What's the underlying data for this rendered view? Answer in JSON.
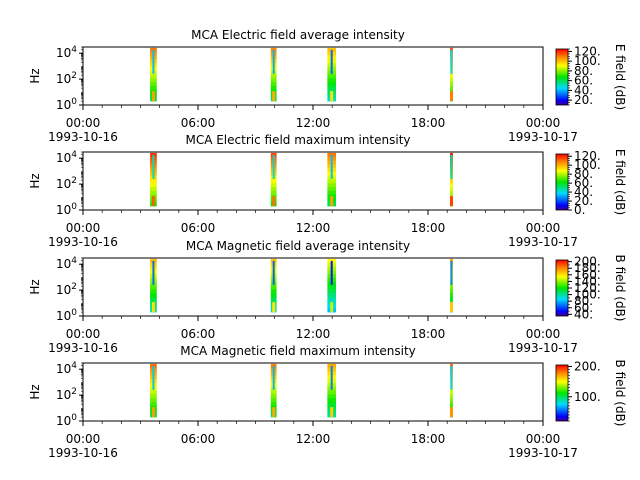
{
  "chart_data": [
    {
      "type": "heatmap",
      "title": "MCA  Electric field average intensity",
      "ylabel": "Hz",
      "colorbar_label": "E field (dB)",
      "colorbar_ticks": [
        "120.",
        "100.",
        "80.",
        "60.",
        "40.",
        "20."
      ],
      "colorbar_range": [
        10,
        125
      ],
      "y_ticks": [
        "10^0",
        "10^2",
        "10^4"
      ],
      "ylim": [
        1,
        30000
      ],
      "x_ticks": [
        "00:00",
        "06:00",
        "12:00",
        "18:00",
        "00:00"
      ],
      "x_dates": [
        "1993-10-16",
        "1993-10-17"
      ],
      "xlim_hours": [
        0,
        24
      ],
      "bursts": [
        {
          "start_hour": 3.5,
          "end_hour": 3.85,
          "level_db": 70
        },
        {
          "start_hour": 9.8,
          "end_hour": 10.1,
          "level_db": 68
        },
        {
          "start_hour": 12.75,
          "end_hour": 13.2,
          "level_db": 60
        },
        {
          "start_hour": 19.15,
          "end_hour": 19.3,
          "level_db": 75
        }
      ]
    },
    {
      "type": "heatmap",
      "title": "MCA  Electric field maximum intensity",
      "ylabel": "Hz",
      "colorbar_label": "E field (dB)",
      "colorbar_ticks": [
        "120.",
        "100.",
        "80.",
        "60.",
        "40.",
        "20.",
        "0."
      ],
      "colorbar_range": [
        0,
        125
      ],
      "y_ticks": [
        "10^0",
        "10^2",
        "10^4"
      ],
      "ylim": [
        1,
        30000
      ],
      "x_ticks": [
        "00:00",
        "06:00",
        "12:00",
        "18:00",
        "00:00"
      ],
      "x_dates": [
        "1993-10-16",
        "1993-10-17"
      ],
      "xlim_hours": [
        0,
        24
      ],
      "bursts": [
        {
          "start_hour": 3.5,
          "end_hour": 3.85,
          "level_db": 75
        },
        {
          "start_hour": 9.8,
          "end_hour": 10.1,
          "level_db": 72
        },
        {
          "start_hour": 12.75,
          "end_hour": 13.2,
          "level_db": 65
        },
        {
          "start_hour": 19.15,
          "end_hour": 19.3,
          "level_db": 78
        }
      ]
    },
    {
      "type": "heatmap",
      "title": "MCA  Magnetic field average intensity",
      "ylabel": "Hz",
      "colorbar_label": "B field (dB)",
      "colorbar_ticks": [
        "200.",
        "180.",
        "160.",
        "140.",
        "120.",
        "100.",
        "80.",
        "60.",
        "40."
      ],
      "colorbar_range": [
        35,
        205
      ],
      "y_ticks": [
        "10^0",
        "10^2",
        "10^4"
      ],
      "ylim": [
        1,
        30000
      ],
      "x_ticks": [
        "00:00",
        "06:00",
        "12:00",
        "18:00",
        "00:00"
      ],
      "x_dates": [
        "1993-10-16",
        "1993-10-17"
      ],
      "xlim_hours": [
        0,
        24
      ],
      "bursts": [
        {
          "start_hour": 3.5,
          "end_hour": 3.85,
          "level_db": 110
        },
        {
          "start_hour": 9.8,
          "end_hour": 10.1,
          "level_db": 108
        },
        {
          "start_hour": 12.75,
          "end_hour": 13.2,
          "level_db": 95
        },
        {
          "start_hour": 19.15,
          "end_hour": 19.3,
          "level_db": 115
        }
      ]
    },
    {
      "type": "heatmap",
      "title": "MCA  Magnetic field maximum intensity",
      "ylabel": "Hz",
      "colorbar_label": "B field (dB)",
      "colorbar_ticks": [
        "200.",
        "100."
      ],
      "colorbar_range": [
        20,
        205
      ],
      "y_ticks": [
        "10^0",
        "10^2",
        "10^4"
      ],
      "ylim": [
        1,
        30000
      ],
      "x_ticks": [
        "00:00",
        "06:00",
        "12:00",
        "18:00",
        "00:00"
      ],
      "x_dates": [
        "1993-10-16",
        "1993-10-17"
      ],
      "xlim_hours": [
        0,
        24
      ],
      "bursts": [
        {
          "start_hour": 3.5,
          "end_hour": 3.85,
          "level_db": 118
        },
        {
          "start_hour": 9.8,
          "end_hour": 10.1,
          "level_db": 115
        },
        {
          "start_hour": 12.75,
          "end_hour": 13.2,
          "level_db": 105
        },
        {
          "start_hour": 19.15,
          "end_hour": 19.3,
          "level_db": 120
        }
      ]
    }
  ]
}
